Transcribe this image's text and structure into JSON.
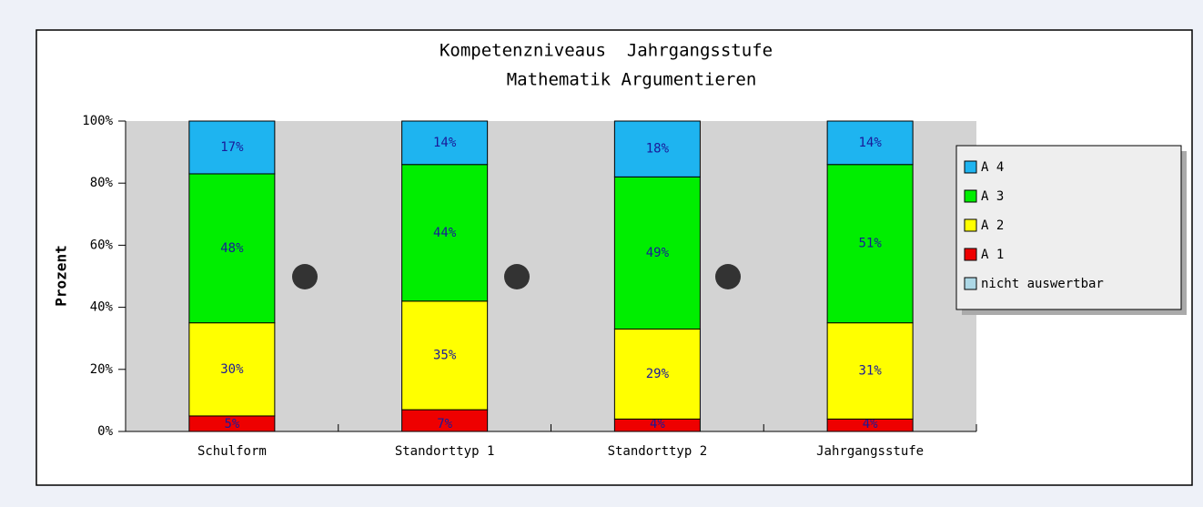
{
  "chart_data": {
    "type": "stacked_bar",
    "title": "Kompetenzniveaus  Jahrgangsstufe",
    "subtitle": "Mathematik Argumentieren",
    "y_label": "Prozent",
    "categories": [
      "Schulform",
      "Standorttyp 1",
      "Standorttyp 2",
      "Jahrgangsstufe"
    ],
    "series": [
      {
        "name": "A 1",
        "color": "#ee0000",
        "values": [
          5,
          7,
          4,
          4
        ],
        "value_labels": [
          "5%",
          "7%",
          "4%",
          "4%"
        ]
      },
      {
        "name": "A 2",
        "color": "#ffff00",
        "values": [
          30,
          35,
          29,
          31
        ],
        "value_labels": [
          "30%",
          "35%",
          "29%",
          "31%"
        ]
      },
      {
        "name": "A 3",
        "color": "#00ee00",
        "values": [
          48,
          44,
          49,
          51
        ],
        "value_labels": [
          "48%",
          "44%",
          "49%",
          "51%"
        ]
      },
      {
        "name": "A 4",
        "color": "#1eb4f0",
        "values": [
          17,
          14,
          18,
          14
        ],
        "value_labels": [
          "17%",
          "14%",
          "18%",
          "14%"
        ]
      },
      {
        "name": "nicht auswertbar",
        "color": "#add8e6",
        "values": [
          0,
          0,
          0,
          0
        ]
      }
    ],
    "ylim": [
      0,
      100
    ],
    "yticks": [
      {
        "value": 0,
        "label": "0%"
      },
      {
        "value": 20,
        "label": "20%"
      },
      {
        "value": 40,
        "label": "40%"
      },
      {
        "value": 60,
        "label": "60%"
      },
      {
        "value": 80,
        "label": "80%"
      },
      {
        "value": 100,
        "label": "100%"
      }
    ],
    "legend": "right"
  }
}
